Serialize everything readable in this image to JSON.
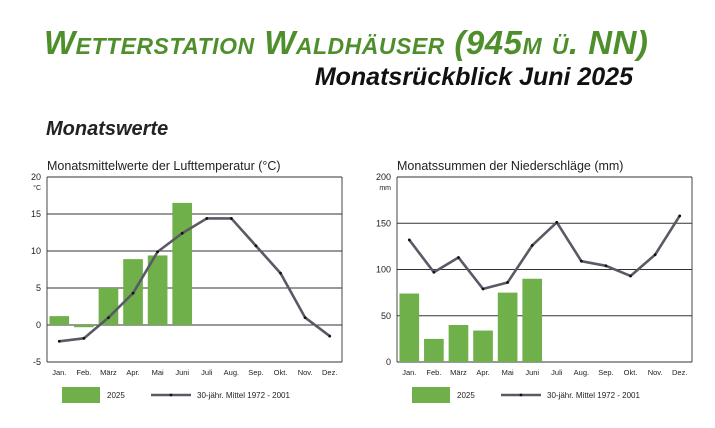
{
  "header": {
    "title": "Wetterstation Waldhäuser (945m ü. NN)",
    "subtitle": "Monatsrückblick Juni 2025",
    "section": "Monatswerte"
  },
  "colors": {
    "title": "#4e8f2c",
    "bar": "#6fb04a",
    "line": "#5a5a66",
    "marker": "#111111"
  },
  "chart_data": [
    {
      "type": "bar",
      "title": "Monatsmittelwerte der Lufttemperatur (°C)",
      "ylabel": "°C",
      "ylim": [
        -5,
        20
      ],
      "yticks": [
        -5,
        0,
        5,
        10,
        15,
        20
      ],
      "grid": true,
      "categories": [
        "Jan.",
        "Feb.",
        "März",
        "Apr.",
        "Mai",
        "Juni",
        "Juli",
        "Aug.",
        "Sep.",
        "Okt.",
        "Nov.",
        "Dez."
      ],
      "legend_position": "bottom",
      "series": [
        {
          "name": "2025",
          "type": "bar",
          "values": [
            1.2,
            -0.3,
            5.0,
            8.9,
            9.4,
            16.5,
            null,
            null,
            null,
            null,
            null,
            null
          ]
        },
        {
          "name": "30-jähr. Mittel 1972 - 2001",
          "type": "line",
          "values": [
            -2.2,
            -1.8,
            1.0,
            4.3,
            9.9,
            12.4,
            14.4,
            14.4,
            10.7,
            7.0,
            1.0,
            -1.5
          ]
        }
      ]
    },
    {
      "type": "bar",
      "title": "Monatssummen der Niederschläge (mm)",
      "ylabel": "mm",
      "ylim": [
        0,
        200
      ],
      "yticks": [
        0,
        50,
        100,
        150,
        200
      ],
      "grid": true,
      "categories": [
        "Jan.",
        "Feb.",
        "März",
        "Apr.",
        "Mai",
        "Juni",
        "Juli",
        "Aug.",
        "Sep.",
        "Okt.",
        "Nov.",
        "Dez."
      ],
      "legend_position": "bottom",
      "series": [
        {
          "name": "2025",
          "type": "bar",
          "values": [
            74,
            25,
            40,
            34,
            75,
            90,
            null,
            null,
            null,
            null,
            null,
            null
          ]
        },
        {
          "name": "30-jähr. Mittel 1972 - 2001",
          "type": "line",
          "values": [
            132,
            97,
            113,
            79,
            86,
            126,
            151,
            109,
            104,
            93,
            116,
            158
          ]
        }
      ]
    }
  ]
}
